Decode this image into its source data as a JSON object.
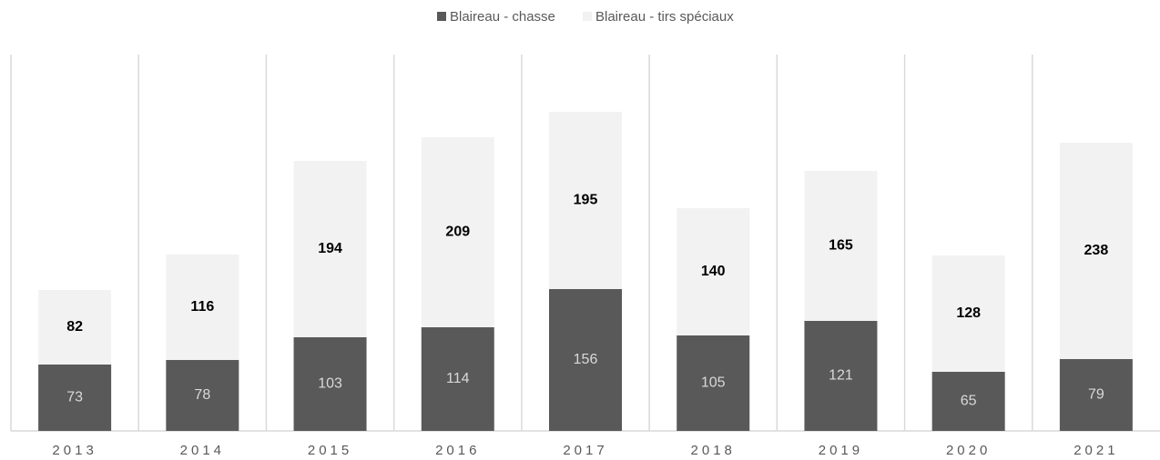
{
  "chart_data": {
    "type": "stacked_bar",
    "categories": [
      "2013",
      "2014",
      "2015",
      "2016",
      "2017",
      "2018",
      "2019",
      "2020",
      "2021"
    ],
    "series": [
      {
        "name": "Blaireau - chasse",
        "color": "#595959",
        "values": [
          73,
          78,
          103,
          114,
          156,
          105,
          121,
          65,
          79
        ]
      },
      {
        "name": "Blaireau - tirs spéciaux",
        "color": "#f2f2f2",
        "values": [
          82,
          116,
          194,
          209,
          195,
          140,
          165,
          128,
          238
        ]
      }
    ],
    "ylim": [
      0,
      400
    ],
    "legend": "top"
  }
}
